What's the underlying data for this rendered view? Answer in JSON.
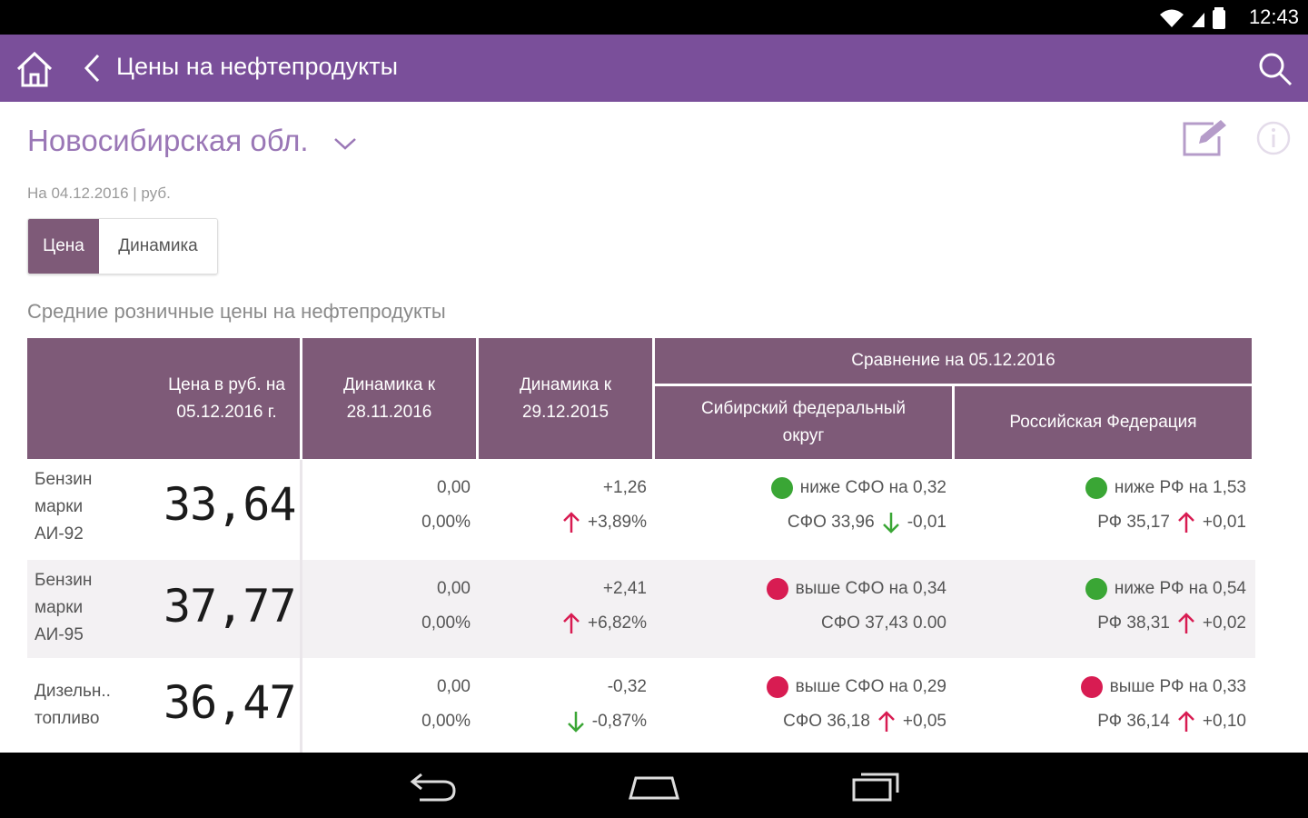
{
  "status_bar": {
    "time": "12:43"
  },
  "app_bar": {
    "title": "Цены на нефтепродукты"
  },
  "region": {
    "name": "Новосибирская обл."
  },
  "date_line": "На 04.12.2016  |  руб.",
  "toggle": {
    "price_label": "Цена",
    "dynamics_label": "Динамика"
  },
  "table_title": "Средние розничные цены на нефтепродукты",
  "table": {
    "headers": {
      "price_line1": "Цена в руб. на",
      "price_line2": "05.12.2016 г.",
      "dyn_week_line1": "Динамика к",
      "dyn_week_line2": "28.11.2016",
      "dyn_year_line1": "Динамика к",
      "dyn_year_line2": "29.12.2015",
      "compare": "Сравнение на 05.12.2016",
      "sfo_line1": "Сибирский федеральный",
      "sfo_line2": "округ",
      "rf": "Российская Федерация"
    },
    "rows": [
      {
        "name_lines": [
          "Бензин",
          "марки",
          "АИ-92"
        ],
        "price": "33,64",
        "dyn_week_abs": "0,00",
        "dyn_week_pct": "0,00%",
        "dyn_year_abs": "+1,26",
        "dyn_year_pct": "+3,89%",
        "dyn_year_dir": "up",
        "sfo_status": "green",
        "sfo_text": "ниже СФО на 0,32",
        "sfo_value": "СФО 33,96",
        "sfo_dir": "down",
        "sfo_change": "-0,01",
        "rf_status": "green",
        "rf_text": "ниже РФ на 1,53",
        "rf_value": "РФ 35,17",
        "rf_dir": "up",
        "rf_change": "+0,01"
      },
      {
        "name_lines": [
          "Бензин",
          "марки",
          "АИ-95"
        ],
        "price": "37,77",
        "dyn_week_abs": "0,00",
        "dyn_week_pct": "0,00%",
        "dyn_year_abs": "+2,41",
        "dyn_year_pct": "+6,82%",
        "dyn_year_dir": "up",
        "sfo_status": "red",
        "sfo_text": "выше СФО на 0,34",
        "sfo_value": "СФО 37,43 0.00",
        "sfo_dir": "none",
        "sfo_change": "",
        "rf_status": "green",
        "rf_text": "ниже РФ на 0,54",
        "rf_value": "РФ 38,31",
        "rf_dir": "up",
        "rf_change": "+0,02"
      },
      {
        "name_lines": [
          "Дизельн..",
          "топливо"
        ],
        "price": "36,47",
        "dyn_week_abs": "0,00",
        "dyn_week_pct": "0,00%",
        "dyn_year_abs": "-0,32",
        "dyn_year_pct": "-0,87%",
        "dyn_year_dir": "down",
        "sfo_status": "red",
        "sfo_text": "выше СФО на 0,29",
        "sfo_value": "СФО 36,18",
        "sfo_dir": "up",
        "sfo_change": "+0,05",
        "rf_status": "red",
        "rf_text": "выше РФ на 0,33",
        "rf_value": "РФ 36,14",
        "rf_dir": "up",
        "rf_change": "+0,10"
      }
    ]
  },
  "colors": {
    "app_bar": "#7a4f9a",
    "table_header": "#7e5a78",
    "region_text": "#9a77b6",
    "green": "#3aa635",
    "red": "#d81c52",
    "arrow_up": "#d81c52",
    "arrow_down": "#3aa635"
  }
}
